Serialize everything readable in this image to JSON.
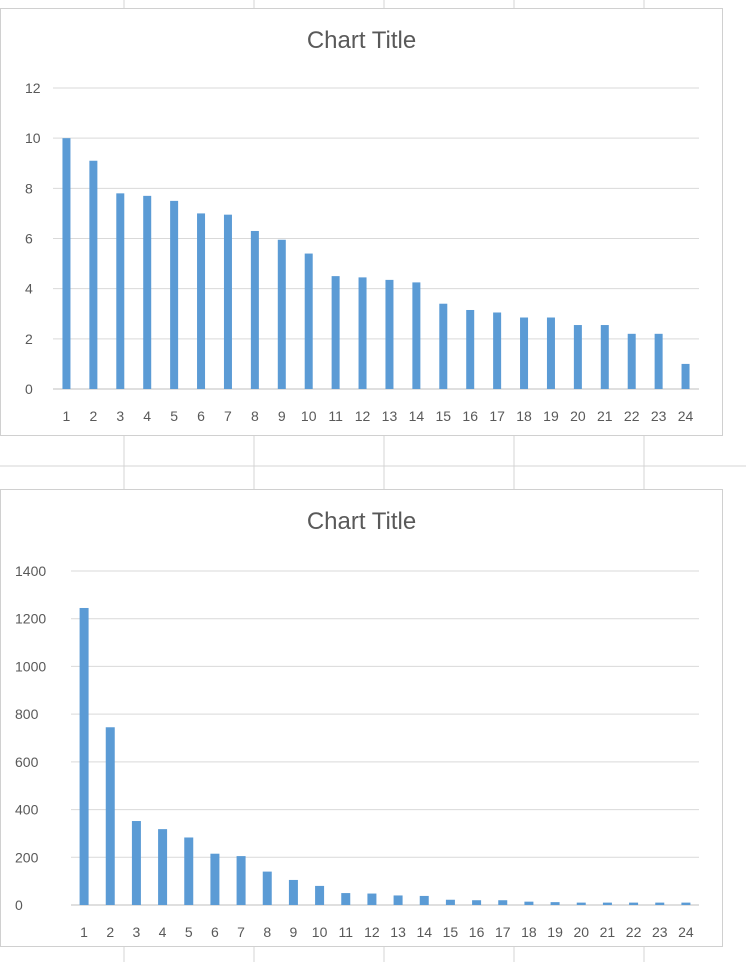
{
  "colors": {
    "bar": "#5b9bd5",
    "grid": "#d9d9d9",
    "text": "#595959",
    "sheet_grid": "#d4d4d4"
  },
  "chart_data": [
    {
      "type": "bar",
      "title": "Chart Title",
      "categories": [
        "1",
        "2",
        "3",
        "4",
        "5",
        "6",
        "7",
        "8",
        "9",
        "10",
        "11",
        "12",
        "13",
        "14",
        "15",
        "16",
        "17",
        "18",
        "19",
        "20",
        "21",
        "22",
        "23",
        "24"
      ],
      "values": [
        10,
        9.1,
        7.8,
        7.7,
        7.5,
        7.0,
        6.95,
        6.3,
        5.95,
        5.4,
        4.5,
        4.45,
        4.35,
        4.25,
        3.4,
        3.15,
        3.05,
        2.85,
        2.85,
        2.55,
        2.55,
        2.2,
        2.2,
        1.0
      ],
      "ylim": [
        0,
        12
      ],
      "yticks": [
        "0",
        "2",
        "4",
        "6",
        "8",
        "10",
        "12"
      ],
      "grid": true
    },
    {
      "type": "bar",
      "title": "Chart Title",
      "categories": [
        "1",
        "2",
        "3",
        "4",
        "5",
        "6",
        "7",
        "8",
        "9",
        "10",
        "11",
        "12",
        "13",
        "14",
        "15",
        "16",
        "17",
        "18",
        "19",
        "20",
        "21",
        "22",
        "23",
        "24"
      ],
      "values": [
        1245,
        745,
        352,
        318,
        283,
        215,
        205,
        140,
        105,
        80,
        50,
        48,
        40,
        38,
        22,
        20,
        20,
        14,
        12,
        10,
        10,
        10,
        10,
        10
      ],
      "ylim": [
        0,
        1400
      ],
      "yticks": [
        "0",
        "200",
        "400",
        "600",
        "800",
        "1000",
        "1200",
        "1400"
      ],
      "grid": true
    }
  ]
}
